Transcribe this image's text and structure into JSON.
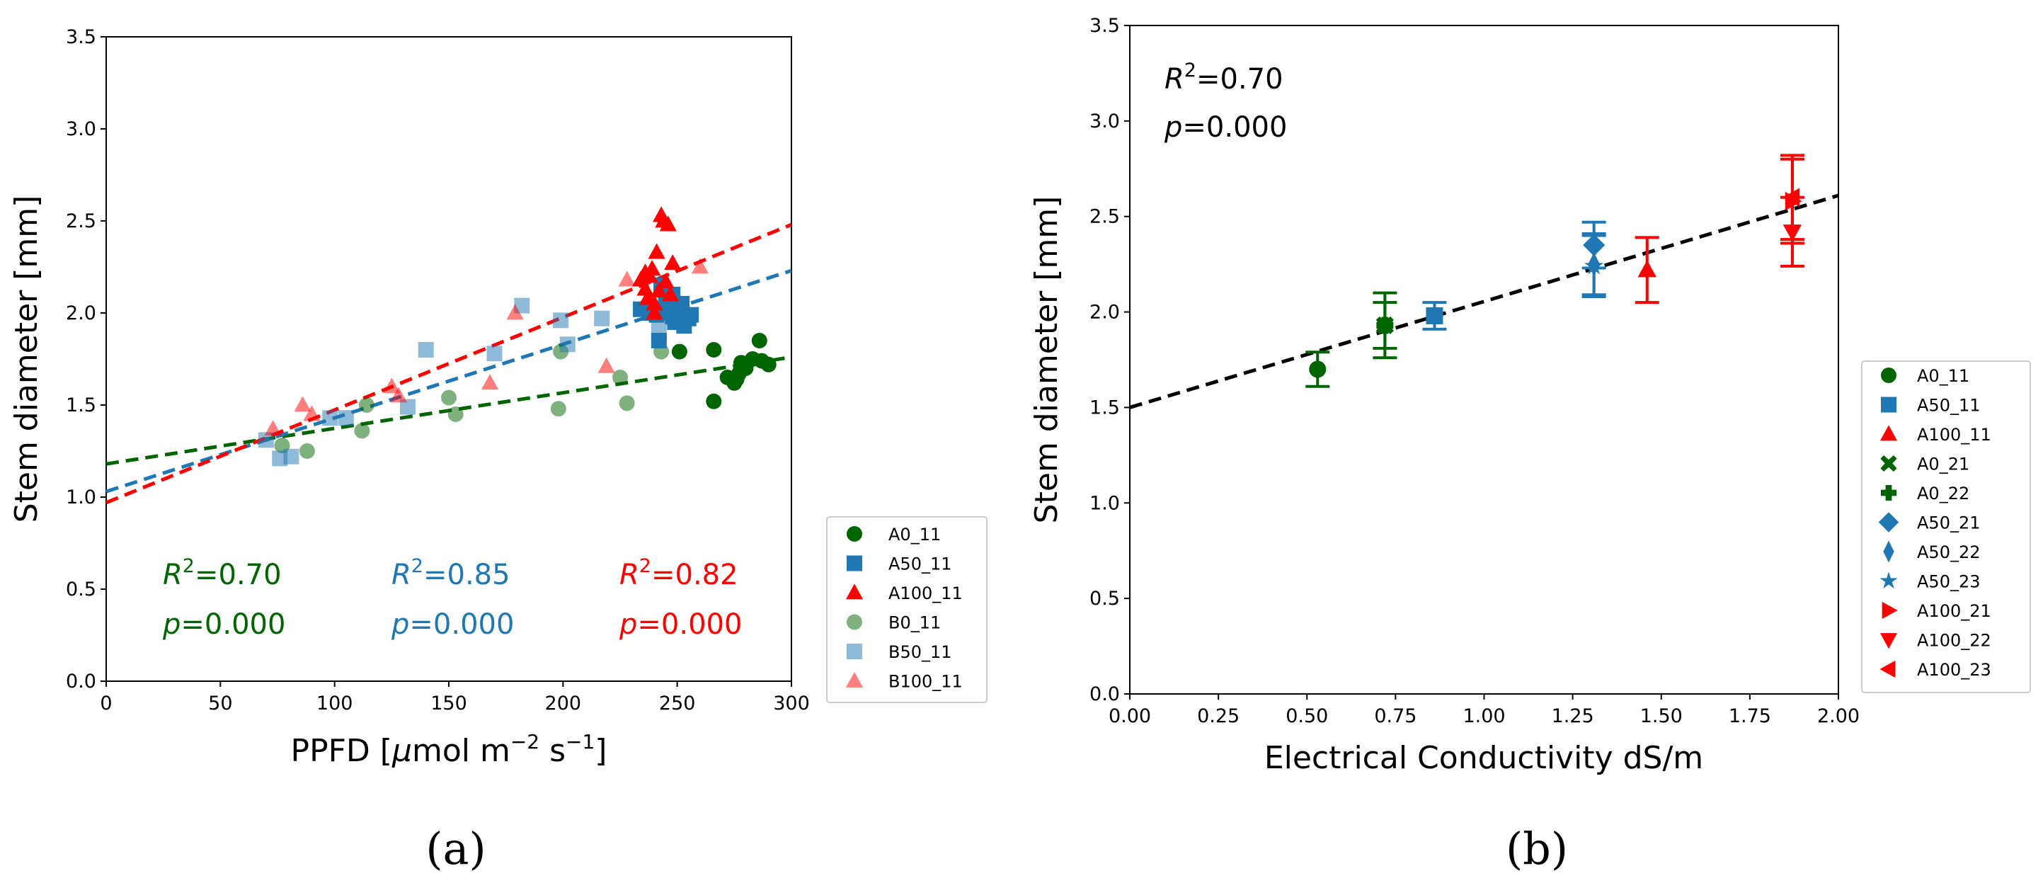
{
  "colors": {
    "green": "#006400",
    "blue": "#1f77b4",
    "red": "#ff0000"
  },
  "panels": {
    "a": "(a)",
    "b": "(b)"
  },
  "chart_data": [
    {
      "id": "a",
      "type": "scatter",
      "xlabel_pre": "PPFD [",
      "xlabel_mu": "μ",
      "xlabel_mid": "mol m",
      "xlabel_exp1": "−2",
      "xlabel_s": " s",
      "xlabel_exp2": "−1",
      "xlabel_post": "]",
      "ylabel": "Stem diameter [mm]",
      "xlim": [
        0,
        300
      ],
      "ylim": [
        0,
        3.5
      ],
      "xticks": [
        "0",
        "50",
        "100",
        "150",
        "200",
        "250",
        "300"
      ],
      "yticks": [
        "0.0",
        "0.5",
        "1.0",
        "1.5",
        "2.0",
        "2.5",
        "3.0",
        "3.5"
      ],
      "legend_position": "outside-right",
      "fits": [
        {
          "name": "A0_11/B0_11 fit",
          "color": "#006400",
          "x": [
            0,
            300
          ],
          "y": [
            1.18,
            1.76
          ]
        },
        {
          "name": "A50_11/B50_11 fit",
          "color": "#1f77b4",
          "x": [
            0,
            300
          ],
          "y": [
            1.03,
            2.23
          ]
        },
        {
          "name": "A100_11/B100_11 fit",
          "color": "#ff0000",
          "x": [
            0,
            300
          ],
          "y": [
            0.97,
            2.48
          ]
        }
      ],
      "annotations": [
        {
          "color": "#006400",
          "r2": "0.70",
          "p": "0.000"
        },
        {
          "color": "#1f77b4",
          "r2": "0.85",
          "p": "0.000"
        },
        {
          "color": "#ff0000",
          "r2": "0.82",
          "p": "0.000"
        }
      ],
      "series": [
        {
          "name": "A0_11",
          "marker": "circle",
          "color": "#006400",
          "alpha": 1,
          "x": [
            266,
            272,
            275,
            277,
            278,
            280,
            283,
            286,
            287,
            290,
            266,
            251,
            276
          ],
          "y": [
            1.52,
            1.65,
            1.62,
            1.67,
            1.73,
            1.7,
            1.75,
            1.85,
            1.74,
            1.72,
            1.8,
            1.79,
            1.64
          ]
        },
        {
          "name": "A50_11",
          "marker": "square",
          "color": "#1f77b4",
          "alpha": 1,
          "x": [
            234,
            238,
            241,
            243,
            245,
            247,
            248,
            249,
            250,
            252,
            253,
            254,
            256,
            248,
            242,
            246,
            250,
            251,
            255
          ],
          "y": [
            2.02,
            2.0,
            1.99,
            2.15,
            2.07,
            2.04,
            1.98,
            1.95,
            1.97,
            2.05,
            1.93,
            1.98,
            1.99,
            2.1,
            1.85,
            2.0,
            1.96,
            2.02,
            1.97
          ]
        },
        {
          "name": "A100_11",
          "marker": "triangle-up",
          "color": "#ff0000",
          "alpha": 1,
          "x": [
            234,
            236,
            237,
            238,
            239,
            240,
            241,
            242,
            243,
            244,
            245,
            246,
            247,
            248,
            236,
            240
          ],
          "y": [
            2.18,
            2.22,
            2.08,
            2.2,
            2.24,
            2.0,
            2.33,
            2.12,
            2.53,
            2.5,
            2.17,
            2.48,
            2.1,
            2.27,
            2.13,
            2.05
          ]
        },
        {
          "name": "B0_11",
          "marker": "circle",
          "color": "#006400",
          "alpha": 0.5,
          "x": [
            77,
            88,
            112,
            114,
            150,
            153,
            198,
            199,
            225,
            228,
            243
          ],
          "y": [
            1.28,
            1.25,
            1.36,
            1.5,
            1.54,
            1.45,
            1.48,
            1.79,
            1.65,
            1.51,
            1.79
          ]
        },
        {
          "name": "B50_11",
          "marker": "square",
          "color": "#1f77b4",
          "alpha": 0.5,
          "x": [
            70,
            76,
            81,
            98,
            105,
            132,
            140,
            170,
            182,
            199,
            202,
            217,
            242
          ],
          "y": [
            1.31,
            1.21,
            1.22,
            1.43,
            1.43,
            1.49,
            1.8,
            1.78,
            2.04,
            1.96,
            1.83,
            1.97,
            1.91
          ]
        },
        {
          "name": "B100_11",
          "marker": "triangle-up",
          "color": "#ff0000",
          "alpha": 0.5,
          "x": [
            73,
            86,
            90,
            125,
            128,
            168,
            179,
            219,
            228,
            260
          ],
          "y": [
            1.37,
            1.5,
            1.45,
            1.6,
            1.55,
            1.62,
            2.0,
            1.71,
            2.18,
            2.25
          ]
        }
      ]
    },
    {
      "id": "b",
      "type": "scatter",
      "xlabel": "Electrical Conductivity dS/m",
      "ylabel": "Stem diameter [mm]",
      "xlim": [
        0,
        2
      ],
      "ylim": [
        0,
        3.5
      ],
      "xticks": [
        "0.00",
        "0.25",
        "0.50",
        "0.75",
        "1.00",
        "1.25",
        "1.50",
        "1.75",
        "2.00"
      ],
      "yticks": [
        "0.0",
        "0.5",
        "1.0",
        "1.5",
        "2.0",
        "2.5",
        "3.0",
        "3.5"
      ],
      "legend_position": "outside-right",
      "annotation": {
        "r2": "0.70",
        "p": "0.000"
      },
      "fit": {
        "color": "#000000",
        "x": [
          0,
          2
        ],
        "y": [
          1.5,
          2.61
        ]
      },
      "series": [
        {
          "name": "A0_11",
          "marker": "circle",
          "color": "#006400",
          "x": 0.53,
          "y": 1.7,
          "err": 0.09
        },
        {
          "name": "A50_11",
          "marker": "square",
          "color": "#1f77b4",
          "x": 0.86,
          "y": 1.98,
          "err": 0.07
        },
        {
          "name": "A100_11",
          "marker": "triangle-up",
          "color": "#ff0000",
          "x": 1.46,
          "y": 2.22,
          "err": 0.17
        },
        {
          "name": "A0_21",
          "marker": "x",
          "color": "#006400",
          "x": 0.72,
          "y": 1.93,
          "err": 0.17
        },
        {
          "name": "A0_22",
          "marker": "plus",
          "color": "#006400",
          "x": 0.72,
          "y": 1.93,
          "err": 0.12
        },
        {
          "name": "A50_21",
          "marker": "diamond",
          "color": "#1f77b4",
          "x": 1.31,
          "y": 2.35,
          "err": 0.12
        },
        {
          "name": "A50_22",
          "marker": "thin-diamond",
          "color": "#1f77b4",
          "x": 1.31,
          "y": 2.25,
          "err": 0.16
        },
        {
          "name": "A50_23",
          "marker": "star",
          "color": "#1f77b4",
          "x": 1.31,
          "y": 2.24,
          "err": 0.16
        },
        {
          "name": "A100_21",
          "marker": "triangle-right",
          "color": "#ff0000",
          "x": 1.87,
          "y": 2.58,
          "err": 0.22
        },
        {
          "name": "A100_22",
          "marker": "triangle-down",
          "color": "#ff0000",
          "x": 1.87,
          "y": 2.42,
          "err": 0.18
        },
        {
          "name": "A100_23",
          "marker": "triangle-left",
          "color": "#ff0000",
          "x": 1.87,
          "y": 2.6,
          "err": 0.22
        }
      ]
    }
  ]
}
